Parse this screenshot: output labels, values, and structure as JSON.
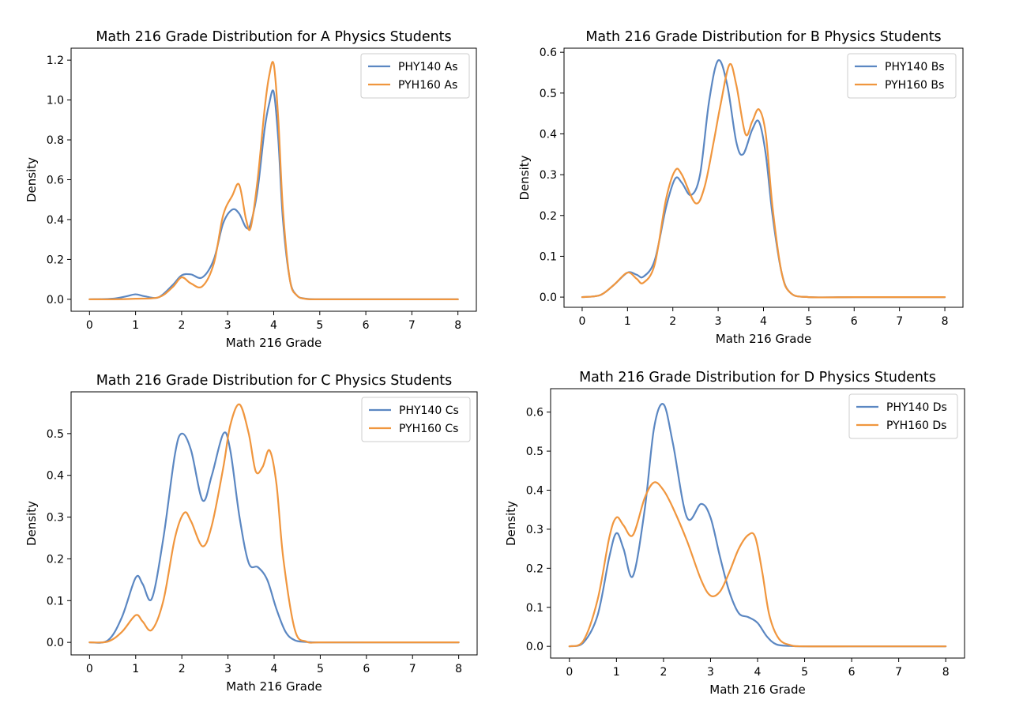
{
  "chart_data": [
    {
      "type": "line",
      "title": "Math 216 Grade Distribution for A Physics Students",
      "xlabel": "Math 216 Grade",
      "ylabel": "Density",
      "xlim": [
        -0.4,
        8.4
      ],
      "ylim": [
        -0.06,
        1.26
      ],
      "xticks": [
        0,
        1,
        2,
        3,
        4,
        5,
        6,
        7,
        8
      ],
      "yticks": [
        0.0,
        0.2,
        0.4,
        0.6,
        0.8,
        1.0,
        1.2
      ],
      "ytick_decimals": 1,
      "grid": false,
      "legend_position": "top-right",
      "series": [
        {
          "name": "PHY140 As",
          "color": "#5b87c2",
          "x": [
            0,
            0.5,
            0.8,
            1.0,
            1.2,
            1.5,
            1.8,
            2.0,
            2.2,
            2.45,
            2.7,
            2.9,
            3.1,
            3.25,
            3.4,
            3.5,
            3.65,
            3.8,
            3.9,
            4.0,
            4.1,
            4.2,
            4.35,
            4.5,
            4.7,
            5,
            6,
            7,
            8
          ],
          "y": [
            0,
            0.003,
            0.015,
            0.025,
            0.015,
            0.01,
            0.07,
            0.12,
            0.125,
            0.11,
            0.2,
            0.38,
            0.45,
            0.43,
            0.36,
            0.38,
            0.55,
            0.85,
            0.98,
            1.04,
            0.8,
            0.4,
            0.1,
            0.02,
            0.003,
            0,
            0,
            0,
            0
          ]
        },
        {
          "name": "PYH160 As",
          "color": "#f0963e",
          "x": [
            0,
            0.5,
            1.0,
            1.5,
            1.8,
            2.0,
            2.2,
            2.45,
            2.7,
            2.9,
            3.1,
            3.25,
            3.4,
            3.5,
            3.65,
            3.8,
            3.9,
            4.0,
            4.1,
            4.2,
            4.35,
            4.5,
            4.7,
            5,
            6,
            7,
            8
          ],
          "y": [
            0,
            0.0,
            0.003,
            0.01,
            0.06,
            0.11,
            0.08,
            0.065,
            0.18,
            0.42,
            0.52,
            0.575,
            0.4,
            0.36,
            0.6,
            0.95,
            1.12,
            1.18,
            0.9,
            0.45,
            0.1,
            0.02,
            0.002,
            0,
            0,
            0,
            0
          ]
        }
      ]
    },
    {
      "type": "line",
      "title": "Math 216 Grade Distribution for B Physics Students",
      "xlabel": "Math 216 Grade",
      "ylabel": "Density",
      "xlim": [
        -0.4,
        8.4
      ],
      "ylim": [
        -0.025,
        0.61
      ],
      "xticks": [
        0,
        1,
        2,
        3,
        4,
        5,
        6,
        7,
        8
      ],
      "yticks": [
        0.0,
        0.1,
        0.2,
        0.3,
        0.4,
        0.5,
        0.6
      ],
      "ytick_decimals": 1,
      "grid": false,
      "legend_position": "top-right",
      "series": [
        {
          "name": "PHY140 Bs",
          "color": "#5b87c2",
          "x": [
            0,
            0.4,
            0.7,
            1.0,
            1.2,
            1.35,
            1.6,
            1.85,
            2.05,
            2.2,
            2.4,
            2.6,
            2.8,
            3.0,
            3.2,
            3.4,
            3.55,
            3.75,
            3.9,
            4.05,
            4.2,
            4.4,
            4.6,
            5,
            6,
            7,
            8
          ],
          "y": [
            0,
            0.005,
            0.03,
            0.06,
            0.055,
            0.05,
            0.09,
            0.22,
            0.29,
            0.28,
            0.25,
            0.3,
            0.48,
            0.58,
            0.52,
            0.38,
            0.35,
            0.41,
            0.43,
            0.35,
            0.2,
            0.06,
            0.01,
            0,
            0,
            0,
            0
          ]
        },
        {
          "name": "PYH160 Bs",
          "color": "#f0963e",
          "x": [
            0,
            0.4,
            0.7,
            1.0,
            1.2,
            1.35,
            1.6,
            1.85,
            2.05,
            2.2,
            2.5,
            2.7,
            2.9,
            3.05,
            3.25,
            3.4,
            3.6,
            3.75,
            3.9,
            4.05,
            4.2,
            4.4,
            4.6,
            5,
            6,
            7,
            8
          ],
          "y": [
            0,
            0.005,
            0.03,
            0.06,
            0.045,
            0.035,
            0.08,
            0.24,
            0.31,
            0.3,
            0.23,
            0.27,
            0.38,
            0.47,
            0.57,
            0.52,
            0.4,
            0.43,
            0.46,
            0.4,
            0.22,
            0.06,
            0.01,
            0,
            0,
            0,
            0
          ]
        }
      ]
    },
    {
      "type": "line",
      "title": "Math 216 Grade Distribution for C Physics Students",
      "xlabel": "Math 216 Grade",
      "ylabel": "Density",
      "xlim": [
        -0.4,
        8.4
      ],
      "ylim": [
        -0.03,
        0.6
      ],
      "xticks": [
        0,
        1,
        2,
        3,
        4,
        5,
        6,
        7,
        8
      ],
      "yticks": [
        0.0,
        0.1,
        0.2,
        0.3,
        0.4,
        0.5
      ],
      "ytick_decimals": 1,
      "grid": false,
      "legend_position": "top-right",
      "series": [
        {
          "name": "PHY140 Cs",
          "color": "#5b87c2",
          "x": [
            0,
            0.4,
            0.7,
            1.0,
            1.15,
            1.35,
            1.6,
            1.85,
            2.0,
            2.2,
            2.45,
            2.65,
            2.9,
            3.05,
            3.25,
            3.45,
            3.65,
            3.85,
            4.05,
            4.25,
            4.45,
            4.7,
            5,
            6,
            7,
            8
          ],
          "y": [
            0,
            0.005,
            0.06,
            0.155,
            0.14,
            0.105,
            0.25,
            0.45,
            0.5,
            0.46,
            0.34,
            0.4,
            0.5,
            0.46,
            0.3,
            0.19,
            0.18,
            0.15,
            0.08,
            0.025,
            0.005,
            0.001,
            0,
            0,
            0,
            0
          ]
        },
        {
          "name": "PYH160 Cs",
          "color": "#f0963e",
          "x": [
            0,
            0.4,
            0.7,
            1.0,
            1.15,
            1.35,
            1.6,
            1.85,
            2.05,
            2.2,
            2.45,
            2.65,
            2.9,
            3.05,
            3.25,
            3.45,
            3.6,
            3.75,
            3.9,
            4.05,
            4.2,
            4.45,
            4.7,
            5,
            6,
            7,
            8
          ],
          "y": [
            0,
            0.002,
            0.025,
            0.065,
            0.05,
            0.03,
            0.1,
            0.25,
            0.31,
            0.29,
            0.23,
            0.28,
            0.42,
            0.52,
            0.57,
            0.5,
            0.41,
            0.42,
            0.46,
            0.38,
            0.2,
            0.03,
            0.002,
            0,
            0,
            0,
            0
          ]
        }
      ]
    },
    {
      "type": "line",
      "title": "Math 216 Grade Distribution for D Physics Students",
      "xlabel": "Math 216 Grade",
      "ylabel": "Density",
      "xlim": [
        -0.4,
        8.4
      ],
      "ylim": [
        -0.03,
        0.66
      ],
      "xticks": [
        0,
        1,
        2,
        3,
        4,
        5,
        6,
        7,
        8
      ],
      "yticks": [
        0.0,
        0.1,
        0.2,
        0.3,
        0.4,
        0.5,
        0.6
      ],
      "ytick_decimals": 1,
      "grid": false,
      "legend_position": "top-right",
      "series": [
        {
          "name": "PHY140 Ds",
          "color": "#5b87c2",
          "x": [
            0,
            0.3,
            0.6,
            0.85,
            1.0,
            1.15,
            1.35,
            1.6,
            1.8,
            2.0,
            2.2,
            2.5,
            2.8,
            3.0,
            3.2,
            3.4,
            3.6,
            3.8,
            4.0,
            4.2,
            4.4,
            4.7,
            5,
            6,
            7,
            8
          ],
          "y": [
            0,
            0.01,
            0.08,
            0.23,
            0.29,
            0.25,
            0.18,
            0.35,
            0.56,
            0.62,
            0.52,
            0.33,
            0.365,
            0.33,
            0.23,
            0.14,
            0.085,
            0.075,
            0.06,
            0.025,
            0.005,
            0.001,
            0,
            0,
            0,
            0
          ]
        },
        {
          "name": "PYH160 Ds",
          "color": "#f0963e",
          "x": [
            0,
            0.3,
            0.6,
            0.85,
            1.0,
            1.15,
            1.35,
            1.6,
            1.8,
            2.0,
            2.2,
            2.5,
            2.8,
            3.0,
            3.2,
            3.4,
            3.6,
            3.8,
            3.95,
            4.1,
            4.25,
            4.45,
            4.7,
            5,
            6,
            7,
            8
          ],
          "y": [
            0,
            0.015,
            0.12,
            0.28,
            0.33,
            0.31,
            0.285,
            0.38,
            0.42,
            0.4,
            0.355,
            0.27,
            0.17,
            0.13,
            0.14,
            0.19,
            0.25,
            0.285,
            0.28,
            0.19,
            0.08,
            0.02,
            0.003,
            0,
            0,
            0,
            0
          ]
        }
      ]
    }
  ]
}
